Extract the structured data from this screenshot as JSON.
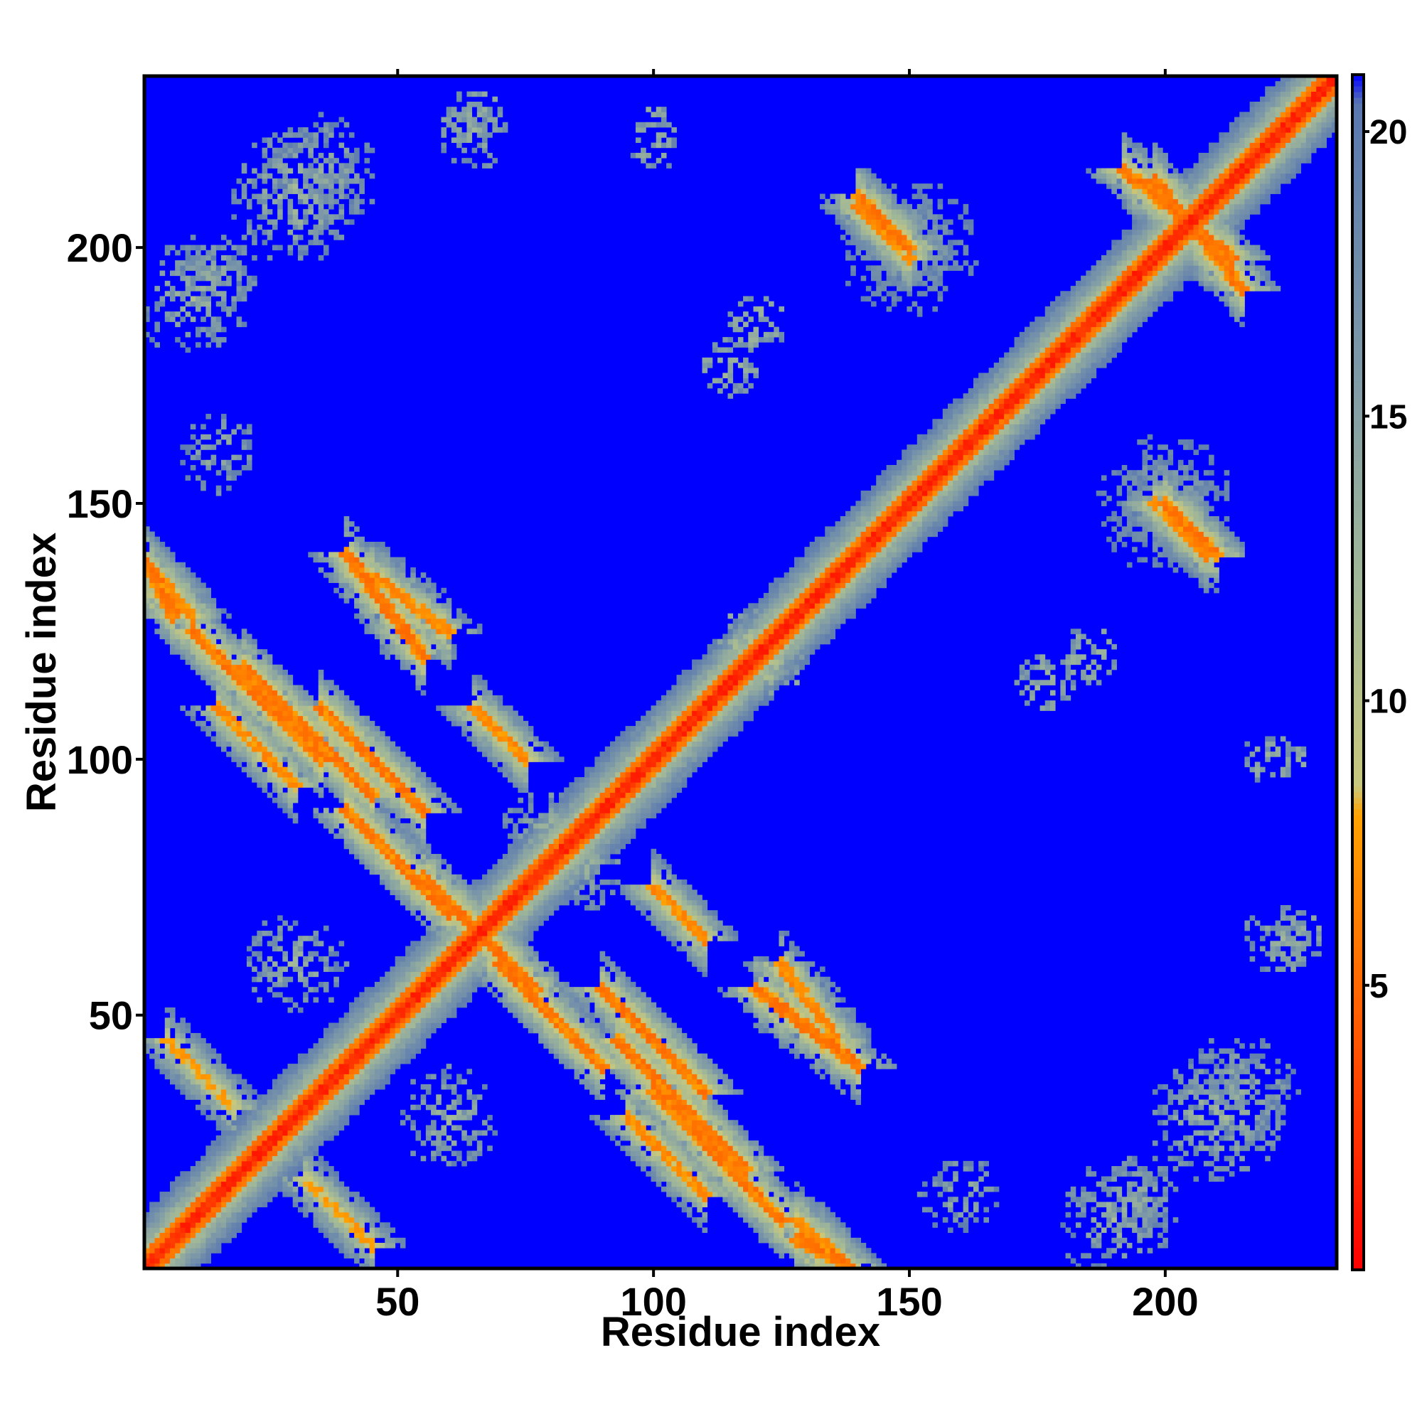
{
  "chart_data": {
    "type": "heatmap",
    "title": "",
    "xlabel": "Residue index",
    "ylabel": "Residue index",
    "n_residues": 233,
    "xlim": [
      0.5,
      233.5
    ],
    "ylim": [
      0.5,
      233.5
    ],
    "x_ticks": [
      50,
      100,
      150,
      200
    ],
    "y_ticks": [
      50,
      100,
      150,
      200
    ],
    "grid": false,
    "legend": "colorbar-right",
    "colorbar": {
      "range": [
        0,
        21
      ],
      "ticks": [
        5,
        10,
        15,
        20
      ],
      "stops": [
        {
          "value": 0,
          "color": "#ff0000"
        },
        {
          "value": 4,
          "color": "#ff5500"
        },
        {
          "value": 8,
          "color": "#ffa200"
        },
        {
          "value": 8.5,
          "color": "#c8c87d"
        },
        {
          "value": 12,
          "color": "#a2b898"
        },
        {
          "value": 16,
          "color": "#7c98a8"
        },
        {
          "value": 20.5,
          "color": "#5a78b0"
        },
        {
          "value": 21,
          "color": "#0000ff"
        }
      ]
    },
    "background_color": "#0000ff",
    "cutoff": 20,
    "diagonal": {
      "from": 1,
      "to": 233,
      "value": 1
    },
    "contact_bands": [
      {
        "i_start": 40,
        "j_start": 90,
        "i_end": 60,
        "j_end": 70,
        "value": 5,
        "orientation": "antiparallel"
      },
      {
        "i_start": 20,
        "j_start": 118,
        "i_end": 45,
        "j_end": 93,
        "value": 5,
        "orientation": "antiparallel"
      },
      {
        "i_start": 55,
        "j_start": 77,
        "i_end": 70,
        "j_end": 62,
        "value": 5,
        "orientation": "antiparallel"
      },
      {
        "i_start": 45,
        "j_start": 136,
        "i_end": 60,
        "j_end": 125,
        "value": 6,
        "orientation": "antiparallel"
      },
      {
        "i_start": 2,
        "j_start": 137,
        "i_end": 10,
        "j_end": 128,
        "value": 6,
        "orientation": "antiparallel"
      },
      {
        "i_start": 65,
        "j_start": 110,
        "i_end": 75,
        "j_end": 100,
        "value": 6,
        "orientation": "antiparallel"
      },
      {
        "i_start": 90,
        "j_start": 55,
        "i_end": 110,
        "j_end": 35,
        "value": 5,
        "orientation": "antiparallel"
      },
      {
        "i_start": 100,
        "j_start": 35,
        "i_end": 125,
        "j_end": 10,
        "value": 5,
        "orientation": "antiparallel"
      },
      {
        "i_start": 128,
        "j_start": 6,
        "i_end": 138,
        "j_end": 1,
        "value": 5,
        "orientation": "antiparallel"
      },
      {
        "i_start": 120,
        "j_start": 55,
        "i_end": 140,
        "j_end": 40,
        "value": 5,
        "orientation": "antiparallel"
      },
      {
        "i_start": 140,
        "j_start": 208,
        "i_end": 150,
        "j_end": 198,
        "value": 6,
        "orientation": "antiparallel"
      },
      {
        "i_start": 192,
        "j_start": 215,
        "i_end": 213,
        "j_end": 198,
        "value": 5,
        "orientation": "antiparallel"
      },
      {
        "i_start": 200,
        "j_start": 150,
        "i_end": 210,
        "j_end": 140,
        "value": 5,
        "orientation": "antiparallel"
      },
      {
        "i_start": 15,
        "j_start": 110,
        "i_end": 30,
        "j_end": 95,
        "value": 6,
        "orientation": "antiparallel"
      },
      {
        "i_start": 32,
        "j_start": 18,
        "i_end": 45,
        "j_end": 5,
        "value": 7,
        "orientation": "antiparallel"
      }
    ],
    "contact_clusters": [
      {
        "i": 10,
        "j": 190,
        "value": 11,
        "radius": 12
      },
      {
        "i": 30,
        "j": 210,
        "value": 10,
        "radius": 13
      },
      {
        "i": 65,
        "j": 222,
        "value": 12,
        "radius": 7
      },
      {
        "i": 100,
        "j": 220,
        "value": 12,
        "radius": 5
      },
      {
        "i": 115,
        "j": 177,
        "value": 11,
        "radius": 6
      },
      {
        "i": 185,
        "j": 120,
        "value": 11,
        "radius": 6
      },
      {
        "i": 225,
        "j": 100,
        "value": 12,
        "radius": 4
      },
      {
        "i": 225,
        "j": 65,
        "value": 11,
        "radius": 6
      },
      {
        "i": 150,
        "j": 200,
        "value": 12,
        "radius": 14
      },
      {
        "i": 200,
        "j": 150,
        "value": 12,
        "radius": 14
      },
      {
        "i": 215,
        "j": 35,
        "value": 11,
        "radius": 12
      },
      {
        "i": 160,
        "j": 15,
        "value": 12,
        "radius": 8
      },
      {
        "i": 195,
        "j": 15,
        "value": 12,
        "radius": 8
      },
      {
        "i": 120,
        "j": 122,
        "value": 9,
        "radius": 8
      },
      {
        "i": 85,
        "j": 80,
        "value": 11,
        "radius": 10
      },
      {
        "i": 30,
        "j": 60,
        "value": 11,
        "radius": 10
      }
    ]
  }
}
